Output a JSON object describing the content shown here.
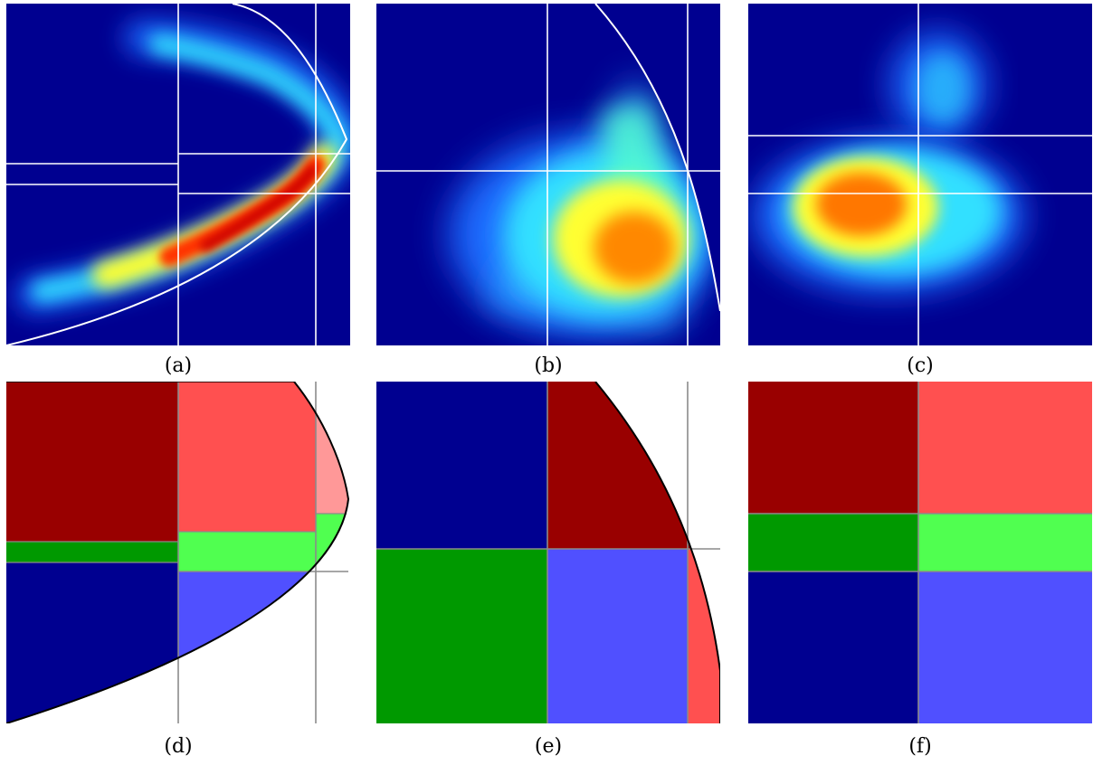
{
  "figure": {
    "panels": [
      {
        "id": "a",
        "caption": "(a)",
        "kind": "density"
      },
      {
        "id": "b",
        "caption": "(b)",
        "kind": "density"
      },
      {
        "id": "c",
        "caption": "(c)",
        "kind": "density"
      },
      {
        "id": "d",
        "caption": "(d)",
        "kind": "partition"
      },
      {
        "id": "e",
        "caption": "(e)",
        "kind": "partition"
      },
      {
        "id": "f",
        "caption": "(f)",
        "kind": "partition"
      }
    ],
    "colors": {
      "background_navy": "#000090",
      "dark_red": "#990000",
      "light_red": "#ff5050",
      "pink": "#ff9898",
      "dark_green": "#009900",
      "light_green": "#50ff50",
      "blue": "#5050ff",
      "grid_gray": "#8a8a8a",
      "boundary_white": "#ffffff",
      "boundary_black": "#000000"
    }
  }
}
